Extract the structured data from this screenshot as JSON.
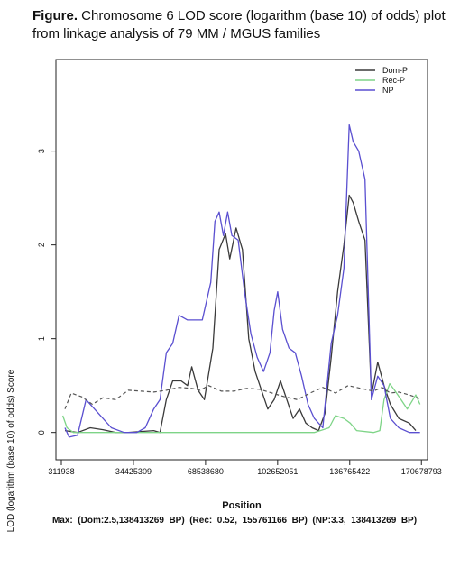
{
  "caption": {
    "bold": "Figure.",
    "rest": " Chromosome  6 LOD score (logarithm (base 10) of odds) plot from linkage  analysis of 79 MM / MGUS families"
  },
  "chart_data": {
    "type": "line",
    "xlabel": "Position",
    "ylabel": "LOD (logarithm (base 10) of odds) Score",
    "x_ticks": [
      311938,
      34425309,
      68538680,
      102652051,
      136765422,
      170678793
    ],
    "x_tick_labels": [
      "311938",
      "34425309",
      "68538680",
      "102652051",
      "136765422",
      "170678793"
    ],
    "y_ticks": [
      0,
      1,
      2,
      3
    ],
    "y_tick_labels": [
      "0",
      "1",
      "2",
      "3"
    ],
    "xlim": [
      311938,
      171000000
    ],
    "ylim": [
      -0.08,
      3.9
    ],
    "legend_position": "top-right",
    "series": [
      {
        "name": "Dom-P",
        "color": "#3a3a3a",
        "style": "solid",
        "points": [
          [
            2000000,
            0.02
          ],
          [
            8000000,
            0.0
          ],
          [
            14000000,
            0.05
          ],
          [
            20000000,
            0.03
          ],
          [
            26000000,
            0.0
          ],
          [
            32000000,
            0.0
          ],
          [
            38000000,
            0.01
          ],
          [
            44000000,
            0.02
          ],
          [
            47000000,
            0.0
          ],
          [
            50000000,
            0.35
          ],
          [
            53000000,
            0.55
          ],
          [
            57000000,
            0.55
          ],
          [
            60000000,
            0.5
          ],
          [
            62000000,
            0.7
          ],
          [
            65000000,
            0.45
          ],
          [
            68000000,
            0.35
          ],
          [
            72000000,
            0.9
          ],
          [
            75000000,
            1.95
          ],
          [
            78000000,
            2.12
          ],
          [
            80000000,
            1.85
          ],
          [
            83000000,
            2.18
          ],
          [
            86000000,
            1.95
          ],
          [
            89000000,
            1.0
          ],
          [
            92000000,
            0.65
          ],
          [
            95000000,
            0.45
          ],
          [
            98000000,
            0.25
          ],
          [
            101000000,
            0.35
          ],
          [
            104000000,
            0.55
          ],
          [
            107000000,
            0.35
          ],
          [
            110000000,
            0.15
          ],
          [
            113000000,
            0.25
          ],
          [
            116000000,
            0.1
          ],
          [
            119000000,
            0.05
          ],
          [
            122000000,
            0.02
          ],
          [
            125000000,
            0.2
          ],
          [
            128000000,
            0.8
          ],
          [
            131000000,
            1.5
          ],
          [
            134000000,
            2.0
          ],
          [
            136500000,
            2.53
          ],
          [
            138400000,
            2.45
          ],
          [
            141000000,
            2.25
          ],
          [
            144000000,
            2.05
          ],
          [
            147000000,
            0.4
          ],
          [
            150000000,
            0.75
          ],
          [
            153000000,
            0.5
          ],
          [
            156000000,
            0.3
          ],
          [
            160000000,
            0.15
          ],
          [
            165000000,
            0.1
          ],
          [
            168000000,
            0.02
          ]
        ]
      },
      {
        "name": "Rec-P",
        "color": "#7ed487",
        "style": "solid",
        "points": [
          [
            1000000,
            0.18
          ],
          [
            3000000,
            0.05
          ],
          [
            6000000,
            0.0
          ],
          [
            40000000,
            0.0
          ],
          [
            80000000,
            0.0
          ],
          [
            120000000,
            0.0
          ],
          [
            127000000,
            0.05
          ],
          [
            130000000,
            0.18
          ],
          [
            134000000,
            0.15
          ],
          [
            137000000,
            0.1
          ],
          [
            140000000,
            0.02
          ],
          [
            148000000,
            0.0
          ],
          [
            151000000,
            0.02
          ],
          [
            153000000,
            0.35
          ],
          [
            155700000,
            0.52
          ],
          [
            158000000,
            0.45
          ],
          [
            161000000,
            0.35
          ],
          [
            164000000,
            0.25
          ],
          [
            168000000,
            0.4
          ],
          [
            170000000,
            0.3
          ]
        ]
      },
      {
        "name": "NP",
        "color": "#5a4fd0",
        "style": "solid",
        "points": [
          [
            2000000,
            0.05
          ],
          [
            4000000,
            -0.05
          ],
          [
            8000000,
            -0.03
          ],
          [
            12000000,
            0.35
          ],
          [
            18000000,
            0.2
          ],
          [
            24000000,
            0.05
          ],
          [
            30000000,
            0.0
          ],
          [
            36000000,
            0.0
          ],
          [
            40000000,
            0.05
          ],
          [
            44000000,
            0.25
          ],
          [
            47000000,
            0.35
          ],
          [
            50000000,
            0.85
          ],
          [
            53000000,
            0.95
          ],
          [
            56000000,
            1.25
          ],
          [
            60000000,
            1.2
          ],
          [
            63000000,
            1.2
          ],
          [
            67000000,
            1.2
          ],
          [
            71000000,
            1.6
          ],
          [
            73000000,
            2.25
          ],
          [
            75000000,
            2.35
          ],
          [
            77000000,
            2.1
          ],
          [
            79000000,
            2.35
          ],
          [
            81000000,
            2.1
          ],
          [
            84000000,
            2.05
          ],
          [
            87000000,
            1.5
          ],
          [
            90000000,
            1.05
          ],
          [
            93000000,
            0.8
          ],
          [
            96000000,
            0.65
          ],
          [
            99000000,
            0.85
          ],
          [
            101000000,
            1.3
          ],
          [
            102700000,
            1.5
          ],
          [
            105000000,
            1.1
          ],
          [
            108000000,
            0.9
          ],
          [
            111000000,
            0.85
          ],
          [
            114000000,
            0.6
          ],
          [
            117000000,
            0.3
          ],
          [
            120000000,
            0.15
          ],
          [
            124000000,
            0.05
          ],
          [
            128000000,
            0.95
          ],
          [
            131000000,
            1.25
          ],
          [
            134000000,
            1.75
          ],
          [
            136500000,
            3.28
          ],
          [
            138400000,
            3.1
          ],
          [
            141000000,
            3.0
          ],
          [
            144000000,
            2.7
          ],
          [
            147000000,
            0.35
          ],
          [
            150000000,
            0.6
          ],
          [
            153000000,
            0.5
          ],
          [
            156000000,
            0.15
          ],
          [
            160000000,
            0.05
          ],
          [
            165000000,
            0.0
          ],
          [
            170000000,
            0.0
          ]
        ]
      },
      {
        "name": "",
        "color": "#555555",
        "style": "dashed",
        "points": [
          [
            2000000,
            0.25
          ],
          [
            5000000,
            0.42
          ],
          [
            10000000,
            0.38
          ],
          [
            15000000,
            0.3
          ],
          [
            20000000,
            0.37
          ],
          [
            26000000,
            0.35
          ],
          [
            32000000,
            0.45
          ],
          [
            38000000,
            0.44
          ],
          [
            44000000,
            0.43
          ],
          [
            50000000,
            0.45
          ],
          [
            56000000,
            0.48
          ],
          [
            62000000,
            0.47
          ],
          [
            66000000,
            0.45
          ],
          [
            70000000,
            0.5
          ],
          [
            76000000,
            0.44
          ],
          [
            82000000,
            0.44
          ],
          [
            88000000,
            0.47
          ],
          [
            94000000,
            0.46
          ],
          [
            100000000,
            0.42
          ],
          [
            106000000,
            0.38
          ],
          [
            112000000,
            0.35
          ],
          [
            118000000,
            0.42
          ],
          [
            124000000,
            0.48
          ],
          [
            130000000,
            0.42
          ],
          [
            136000000,
            0.5
          ],
          [
            142000000,
            0.47
          ],
          [
            148000000,
            0.44
          ],
          [
            152000000,
            0.48
          ],
          [
            156000000,
            0.42
          ],
          [
            160000000,
            0.43
          ],
          [
            165000000,
            0.4
          ],
          [
            170000000,
            0.36
          ]
        ]
      }
    ],
    "max_note": "Max:  (Dom:2.5,138413269  BP)  (Rec:  0.52,  155761166  BP)  (NP:3.3,  138413269  BP)"
  }
}
